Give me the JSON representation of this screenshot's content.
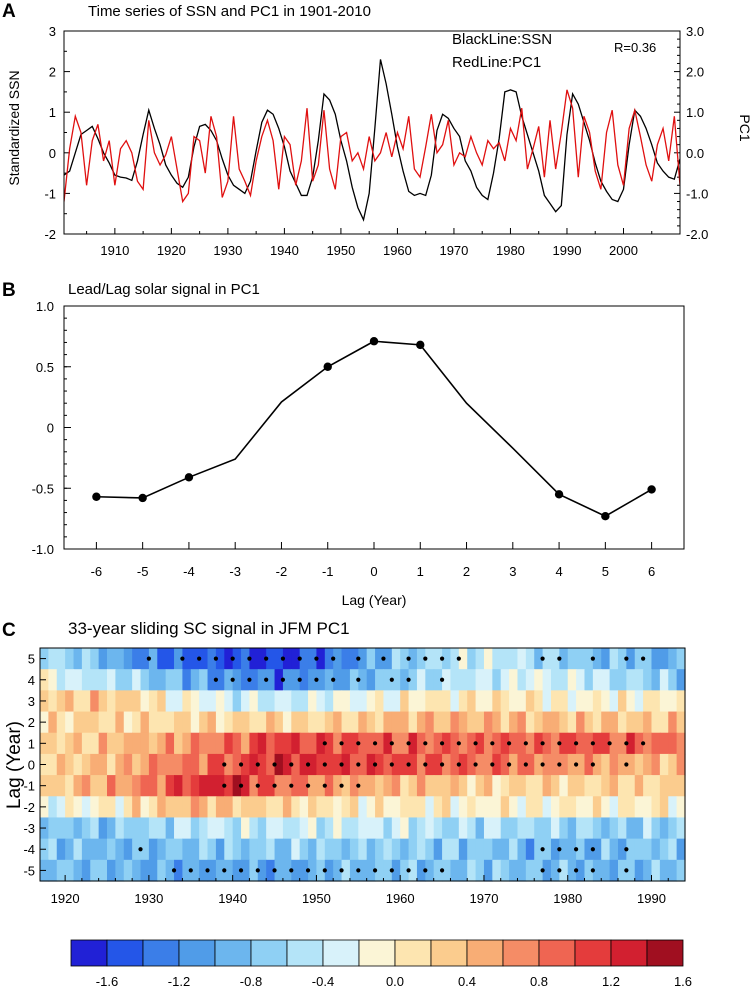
{
  "panels": {
    "a": {
      "letter": "A",
      "title": "Time series of SSN and PC1 in 1901-2010",
      "ylabel_left": "Standardized SSN",
      "ylabel_right": "PC1",
      "legend_black": "BlackLine:SSN",
      "legend_red": "RedLine:PC1",
      "r_label": "R=0.36",
      "yticks_left": [
        "-2",
        "-1",
        "0",
        "1",
        "2",
        "3"
      ],
      "yticks_right": [
        "-2.0",
        "-1.0",
        "0.0",
        "1.0",
        "2.0",
        "3.0"
      ],
      "xticks": [
        "1910",
        "1920",
        "1930",
        "1940",
        "1950",
        "1960",
        "1970",
        "1980",
        "1990",
        "2000"
      ]
    },
    "b": {
      "letter": "B",
      "title": "Lead/Lag solar signal in PC1",
      "xlabel": "Lag (Year)",
      "yticks": [
        "-1.0",
        "-0.5",
        "0",
        "0.5",
        "1.0"
      ],
      "xticks": [
        "-6",
        "-5",
        "-4",
        "-3",
        "-2",
        "-1",
        "0",
        "1",
        "2",
        "3",
        "4",
        "5",
        "6"
      ]
    },
    "c": {
      "letter": "C",
      "title": "33-year sliding SC signal in JFM PC1",
      "ylabel": "Lag (Year)",
      "yticks": [
        "5",
        "4",
        "3",
        "2",
        "1",
        "0",
        "-1",
        "-2",
        "-3",
        "-4",
        "-5"
      ],
      "xticks": [
        "1920",
        "1930",
        "1940",
        "1950",
        "1960",
        "1970",
        "1980",
        "1990"
      ],
      "colorbar_ticks": [
        "-1.6",
        "-1.2",
        "-0.8",
        "-0.4",
        "0.0",
        "0.4",
        "0.8",
        "1.2",
        "1.6"
      ]
    }
  },
  "chart_data": [
    {
      "id": "A",
      "type": "line",
      "title": "Time series of SSN and PC1 in 1901-2010",
      "xlim": [
        1901,
        2010
      ],
      "ylim": [
        -2,
        3
      ],
      "y2lim": [
        -2.0,
        3.0
      ],
      "ylabel": "Standardized SSN",
      "y2label": "PC1",
      "annotation": "R=0.36",
      "x_start": 1901,
      "series": [
        {
          "name": "SSN",
          "color": "#000000",
          "values": [
            -0.55,
            -0.45,
            0.0,
            0.45,
            0.55,
            0.65,
            0.35,
            0.0,
            -0.25,
            -0.55,
            -0.6,
            -0.62,
            -0.68,
            -0.2,
            0.45,
            1.05,
            0.6,
            0.2,
            -0.3,
            -0.55,
            -0.75,
            -0.85,
            -0.6,
            0.15,
            0.65,
            0.7,
            0.55,
            0.3,
            -0.15,
            -0.55,
            -0.8,
            -0.9,
            -1.0,
            -0.7,
            0.05,
            0.75,
            1.05,
            0.95,
            0.6,
            0.15,
            -0.45,
            -0.75,
            -1.05,
            -1.05,
            -0.6,
            0.3,
            1.45,
            1.3,
            0.95,
            0.3,
            -0.2,
            -0.85,
            -1.35,
            -1.65,
            -1.0,
            0.6,
            2.3,
            1.7,
            0.95,
            0.15,
            -0.45,
            -0.95,
            -1.05,
            -1.0,
            -1.05,
            -0.55,
            0.55,
            0.95,
            0.85,
            0.6,
            0.4,
            -0.2,
            -0.45,
            -0.85,
            -1.05,
            -1.15,
            -0.5,
            0.35,
            1.5,
            1.55,
            1.5,
            0.9,
            0.45,
            0.0,
            -0.45,
            -1.05,
            -1.25,
            -1.45,
            -1.3,
            0.45,
            1.45,
            1.2,
            0.75,
            0.3,
            -0.25,
            -0.7,
            -0.95,
            -1.15,
            -1.2,
            -0.9,
            0.2,
            1.05,
            0.9,
            0.6,
            0.2,
            -0.25,
            -0.45,
            -0.6,
            -0.65,
            -0.15
          ]
        },
        {
          "name": "PC1",
          "color": "#e01010",
          "values": [
            -1.2,
            0.1,
            0.9,
            0.5,
            -0.8,
            0.3,
            0.7,
            -0.2,
            0.3,
            -0.8,
            0.1,
            0.3,
            0.0,
            -0.7,
            -0.9,
            0.8,
            0.0,
            -0.3,
            -0.05,
            0.4,
            -0.4,
            -1.2,
            -1.0,
            0.4,
            0.3,
            -0.5,
            0.9,
            0.4,
            -1.1,
            -0.7,
            0.9,
            -0.4,
            -0.7,
            -1.05,
            -0.2,
            0.4,
            0.8,
            0.3,
            -0.9,
            0.4,
            0.2,
            -0.8,
            -0.2,
            1.1,
            -0.7,
            -0.3,
            1.05,
            -0.4,
            -0.9,
            0.4,
            0.5,
            -0.2,
            0.0,
            -0.4,
            0.4,
            -0.2,
            0.0,
            0.5,
            -0.1,
            0.5,
            0.1,
            0.9,
            -0.4,
            -0.6,
            0.15,
            0.95,
            0.0,
            0.2,
            0.8,
            -0.3,
            0.0,
            -0.1,
            0.4,
            0.0,
            -0.3,
            0.3,
            0.1,
            0.25,
            -0.2,
            0.6,
            0.3,
            1.1,
            -0.4,
            0.1,
            0.65,
            -0.6,
            0.8,
            -0.4,
            0.5,
            1.55,
            1.1,
            -0.6,
            0.9,
            0.5,
            -0.45,
            -0.9,
            0.5,
            1.05,
            -0.3,
            -0.8,
            0.6,
            1.05,
            0.4,
            -0.3,
            -0.7,
            0.2,
            0.6,
            -0.2,
            0.9,
            -0.8
          ]
        }
      ]
    },
    {
      "id": "B",
      "type": "line",
      "title": "Lead/Lag solar signal in PC1",
      "xlabel": "Lag (Year)",
      "ylabel": "",
      "xlim": [
        -6.7,
        6.7
      ],
      "ylim": [
        -1.0,
        1.0
      ],
      "x": [
        -6,
        -5,
        -4,
        -3,
        -2,
        -1,
        0,
        1,
        2,
        3,
        4,
        5,
        6
      ],
      "values": [
        -0.57,
        -0.58,
        -0.41,
        -0.26,
        0.21,
        0.5,
        0.71,
        0.68,
        0.2,
        -0.17,
        -0.55,
        -0.73,
        -0.51
      ],
      "markers_at": [
        -6,
        -5,
        -4,
        -1,
        0,
        1,
        4,
        5,
        6
      ]
    },
    {
      "id": "C",
      "type": "heatmap",
      "title": "33-year sliding SC signal in JFM PC1",
      "ylabel": "Lag (Year)",
      "xlim": [
        1917,
        1994
      ],
      "lags": [
        5,
        4,
        3,
        2,
        1,
        0,
        -1,
        -2,
        -3,
        -4,
        -5
      ],
      "x_start": 1917,
      "x_end": 1994,
      "color_levels": [
        -1.6,
        -1.4,
        -1.2,
        -1.0,
        -0.8,
        -0.6,
        -0.4,
        -0.2,
        0.0,
        0.2,
        0.4,
        0.6,
        0.8,
        1.0,
        1.2,
        1.4,
        1.6
      ],
      "colors": [
        "#2121d6",
        "#2456e8",
        "#3b7ee8",
        "#509ce8",
        "#6cb6ee",
        "#8fd0f4",
        "#b4e4f8",
        "#d8f2fa",
        "#fbf5d6",
        "#fde5b0",
        "#fbcc8e",
        "#f8ad75",
        "#f58c66",
        "#ef6552",
        "#e43c3c",
        "#d22030",
        "#a00f20"
      ],
      "row_profiles": [
        [
          [
            1917,
            -0.4
          ],
          [
            1925,
            -0.8
          ],
          [
            1932,
            -1.3
          ],
          [
            1945,
            -1.6
          ],
          [
            1952,
            -1.2
          ],
          [
            1960,
            -0.7
          ],
          [
            1970,
            -0.3
          ],
          [
            1980,
            -0.6
          ],
          [
            1994,
            -0.9
          ]
        ],
        [
          [
            1917,
            -0.1
          ],
          [
            1928,
            -0.5
          ],
          [
            1935,
            -0.9
          ],
          [
            1945,
            -1.2
          ],
          [
            1955,
            -0.8
          ],
          [
            1965,
            -0.4
          ],
          [
            1975,
            -0.2
          ],
          [
            1985,
            -0.4
          ],
          [
            1994,
            -0.7
          ]
        ],
        [
          [
            1917,
            0.4
          ],
          [
            1925,
            0.4
          ],
          [
            1930,
            0.2
          ],
          [
            1938,
            -0.2
          ],
          [
            1945,
            -0.3
          ],
          [
            1955,
            -0.1
          ],
          [
            1962,
            0.1
          ],
          [
            1972,
            0.2
          ],
          [
            1980,
            0.0
          ],
          [
            1994,
            0.1
          ]
        ],
        [
          [
            1917,
            0.2
          ],
          [
            1925,
            0.3
          ],
          [
            1935,
            0.3
          ],
          [
            1945,
            0.3
          ],
          [
            1955,
            0.35
          ],
          [
            1965,
            0.6
          ],
          [
            1975,
            0.5
          ],
          [
            1985,
            0.4
          ],
          [
            1994,
            0.4
          ]
        ],
        [
          [
            1917,
            0.3
          ],
          [
            1925,
            0.45
          ],
          [
            1935,
            0.7
          ],
          [
            1945,
            1.2
          ],
          [
            1955,
            1.1
          ],
          [
            1965,
            1.0
          ],
          [
            1975,
            1.0
          ],
          [
            1982,
            1.1
          ],
          [
            1994,
            0.9
          ]
        ],
        [
          [
            1917,
            0.3
          ],
          [
            1925,
            0.5
          ],
          [
            1935,
            0.9
          ],
          [
            1945,
            1.3
          ],
          [
            1955,
            1.2
          ],
          [
            1965,
            1.0
          ],
          [
            1975,
            0.9
          ],
          [
            1985,
            0.6
          ],
          [
            1994,
            0.5
          ]
        ],
        [
          [
            1917,
            0.35
          ],
          [
            1925,
            0.6
          ],
          [
            1935,
            1.2
          ],
          [
            1939,
            1.5
          ],
          [
            1945,
            1.0
          ],
          [
            1955,
            0.6
          ],
          [
            1965,
            0.4
          ],
          [
            1975,
            0.3
          ],
          [
            1985,
            0.3
          ],
          [
            1994,
            0.35
          ]
        ],
        [
          [
            1917,
            -0.2
          ],
          [
            1925,
            0.1
          ],
          [
            1935,
            0.5
          ],
          [
            1945,
            0.3
          ],
          [
            1955,
            0.1
          ],
          [
            1965,
            0.1
          ],
          [
            1975,
            0.05
          ],
          [
            1985,
            0.1
          ],
          [
            1994,
            0.1
          ]
        ],
        [
          [
            1917,
            -0.6
          ],
          [
            1925,
            -0.7
          ],
          [
            1935,
            -0.4
          ],
          [
            1945,
            -0.35
          ],
          [
            1955,
            -0.3
          ],
          [
            1965,
            -0.4
          ],
          [
            1975,
            -0.5
          ],
          [
            1985,
            -0.6
          ],
          [
            1994,
            -0.6
          ]
        ],
        [
          [
            1917,
            -0.6
          ],
          [
            1925,
            -0.8
          ],
          [
            1935,
            -0.7
          ],
          [
            1945,
            -0.6
          ],
          [
            1955,
            -0.6
          ],
          [
            1965,
            -0.6
          ],
          [
            1975,
            -0.8
          ],
          [
            1985,
            -0.8
          ],
          [
            1994,
            -0.6
          ]
        ],
        [
          [
            1917,
            -0.7
          ],
          [
            1925,
            -0.8
          ],
          [
            1935,
            -0.9
          ],
          [
            1945,
            -0.9
          ],
          [
            1955,
            -0.75
          ],
          [
            1965,
            -0.7
          ],
          [
            1975,
            -0.7
          ],
          [
            1985,
            -0.8
          ],
          [
            1994,
            -0.6
          ]
        ]
      ],
      "significance_dots": [
        {
          "lag": 5,
          "years": [
            1930,
            1934,
            1936,
            1938,
            1940,
            1942,
            1944,
            1946,
            1948,
            1950,
            1952,
            1955,
            1958,
            1961,
            1963,
            1965,
            1967,
            1977,
            1979,
            1983,
            1987,
            1989
          ]
        },
        {
          "lag": 4,
          "years": [
            1938,
            1940,
            1942,
            1944,
            1946,
            1948,
            1950,
            1952,
            1955,
            1959,
            1961,
            1965
          ]
        },
        {
          "lag": 1,
          "years": [
            1951,
            1953,
            1955,
            1957,
            1959,
            1961,
            1963,
            1965,
            1967,
            1969,
            1971,
            1973,
            1975,
            1977,
            1979,
            1981,
            1983,
            1985,
            1987,
            1989
          ]
        },
        {
          "lag": 0,
          "years": [
            1939,
            1941,
            1943,
            1945,
            1947,
            1949,
            1951,
            1953,
            1955,
            1957,
            1959,
            1961,
            1963,
            1965,
            1967,
            1969,
            1971,
            1973,
            1975,
            1977,
            1979,
            1981,
            1983,
            1987
          ]
        },
        {
          "lag": -1,
          "years": [
            1939,
            1941,
            1943,
            1945,
            1947,
            1949,
            1951,
            1953,
            1955
          ]
        },
        {
          "lag": -4,
          "years": [
            1929,
            1977,
            1979,
            1981,
            1983,
            1987
          ]
        },
        {
          "lag": -5,
          "years": [
            1933,
            1935,
            1937,
            1939,
            1941,
            1943,
            1945,
            1947,
            1949,
            1951,
            1953,
            1955,
            1957,
            1959,
            1961,
            1963,
            1965,
            1977,
            1979,
            1981,
            1983,
            1987
          ]
        }
      ],
      "colorbar_ticks": [
        -1.6,
        -1.2,
        -0.8,
        -0.4,
        0.0,
        0.4,
        0.8,
        1.2,
        1.6
      ]
    }
  ]
}
